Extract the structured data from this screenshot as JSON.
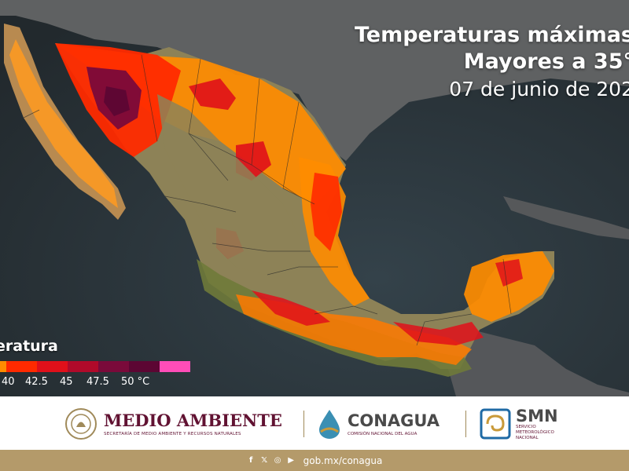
{
  "title": {
    "line1": "Temperaturas máximas",
    "line2": "Mayores a 35°",
    "date": "07 de junio de 202"
  },
  "legend": {
    "title": "eratura",
    "labels": [
      "40",
      "42.5",
      "45",
      "47.5",
      "50 °C"
    ],
    "colors": [
      "#ff8c00",
      "#ff2a00",
      "#e0101a",
      "#b00a2a",
      "#7a0a3a",
      "#5c0633",
      "#ff4db8"
    ]
  },
  "footer": {
    "medio_ambiente": {
      "title": "MEDIO AMBIENTE",
      "subtitle": "SECRETARÍA DE MEDIO AMBIENTE Y RECURSOS NATURALES"
    },
    "conagua": {
      "title": "CONAGUA",
      "subtitle": "COMISIÓN NACIONAL DEL AGUA"
    },
    "smn": {
      "title": "SMN",
      "subtitle_1": "SERVICIO",
      "subtitle_2": "METEOROLÓGICO",
      "subtitle_3": "NACIONAL"
    },
    "social_icons": [
      "facebook-icon",
      "x-icon",
      "instagram-icon",
      "youtube-icon"
    ],
    "website": "gob.mx/conagua"
  },
  "colors": {
    "brand_wine": "#611232",
    "brand_gold": "#b49a6a",
    "ocean": "#2f3a40",
    "land_dry": "#8d8257",
    "land_green": "#6f7a3a"
  }
}
